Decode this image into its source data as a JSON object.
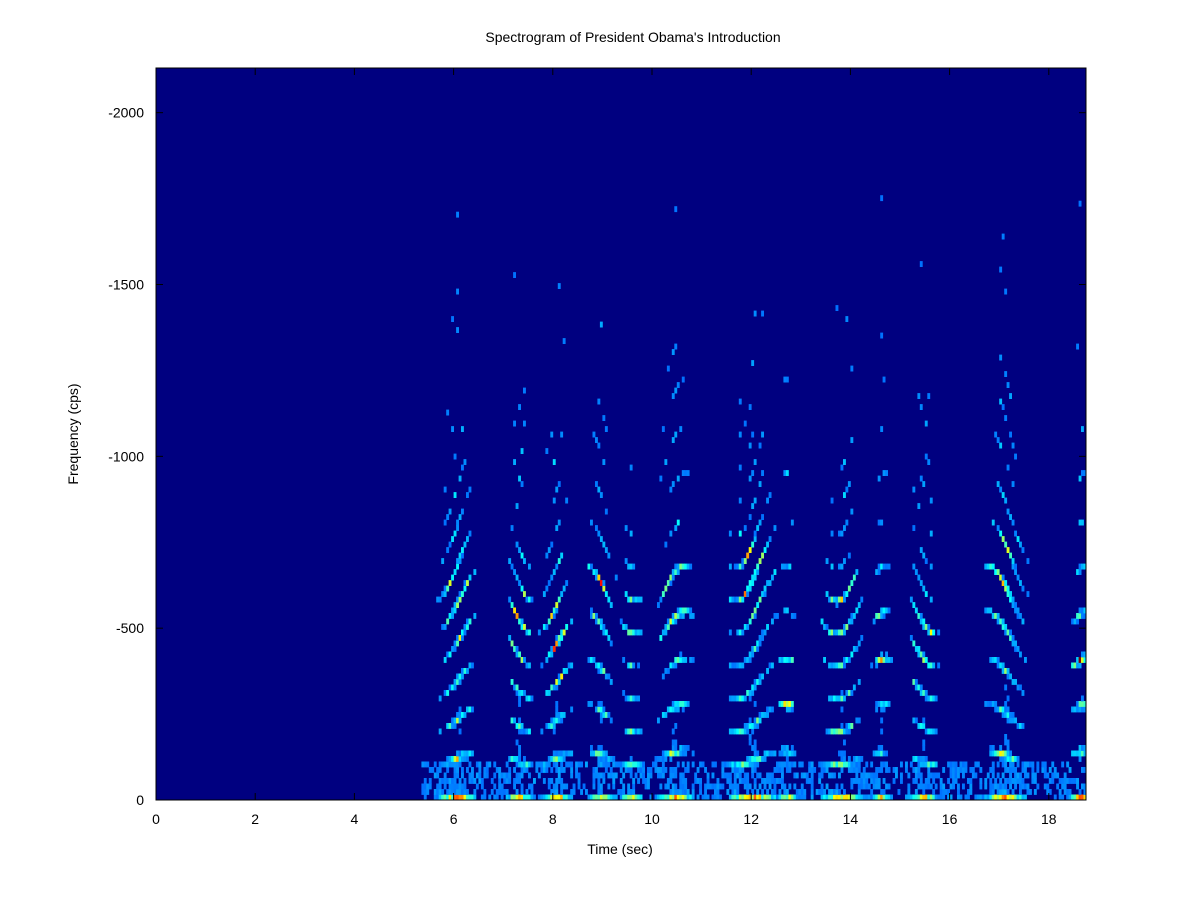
{
  "chart_data": {
    "type": "heatmap",
    "title": "Spectrogram of President Obama's Introduction",
    "xlabel": "Time (sec)",
    "ylabel": "Frequency (cps)",
    "xlim": [
      0,
      18.75
    ],
    "ylim": [
      0,
      -2130
    ],
    "x_ticks": [
      0,
      2,
      4,
      6,
      8,
      10,
      12,
      14,
      16,
      18
    ],
    "x_tick_labels": [
      "0",
      "2",
      "4",
      "6",
      "8",
      "10",
      "12",
      "14",
      "16",
      "18"
    ],
    "y_ticks": [
      0,
      -500,
      -1000,
      -1500,
      -2000
    ],
    "y_tick_labels": [
      "0",
      "-500",
      "-1000",
      "-1500",
      "-2000"
    ],
    "colormap": "jet",
    "background_color": "#000080",
    "grid": false,
    "silence_until_sec": 5.3,
    "speech_bursts": [
      {
        "t_start": 5.7,
        "t_end": 6.4,
        "peak_freq": -590,
        "peak_intensity": 1.0
      },
      {
        "t_start": 7.1,
        "t_end": 7.5,
        "peak_freq": -490,
        "peak_intensity": 0.95
      },
      {
        "t_start": 7.8,
        "t_end": 8.3,
        "peak_freq": -460,
        "peak_intensity": 1.0
      },
      {
        "t_start": 8.7,
        "t_end": 9.2,
        "peak_freq": -600,
        "peak_intensity": 0.9
      },
      {
        "t_start": 9.4,
        "t_end": 9.7,
        "peak_freq": -550,
        "peak_intensity": 0.8
      },
      {
        "t_start": 10.1,
        "t_end": 10.8,
        "peak_freq": -570,
        "peak_intensity": 0.95
      },
      {
        "t_start": 11.5,
        "t_end": 12.5,
        "peak_freq": -640,
        "peak_intensity": 1.0
      },
      {
        "t_start": 12.6,
        "t_end": 12.8,
        "peak_freq": -280,
        "peak_intensity": 0.8
      },
      {
        "t_start": 13.4,
        "t_end": 14.2,
        "peak_freq": -530,
        "peak_intensity": 0.9
      },
      {
        "t_start": 14.5,
        "t_end": 14.7,
        "peak_freq": -460,
        "peak_intensity": 0.85
      },
      {
        "t_start": 15.2,
        "t_end": 15.7,
        "peak_freq": -450,
        "peak_intensity": 0.85
      },
      {
        "t_start": 16.7,
        "t_end": 17.5,
        "peak_freq": -620,
        "peak_intensity": 1.0
      },
      {
        "t_start": 18.5,
        "t_end": 18.75,
        "peak_freq": -390,
        "peak_intensity": 1.0
      }
    ]
  }
}
